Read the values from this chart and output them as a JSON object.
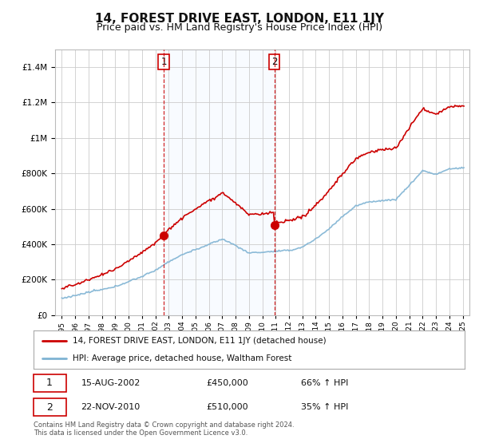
{
  "title": "14, FOREST DRIVE EAST, LONDON, E11 1JY",
  "subtitle": "Price paid vs. HM Land Registry's House Price Index (HPI)",
  "legend_line1": "14, FOREST DRIVE EAST, LONDON, E11 1JY (detached house)",
  "legend_line2": "HPI: Average price, detached house, Waltham Forest",
  "annotation1_date": "15-AUG-2002",
  "annotation1_price": "£450,000",
  "annotation1_hpi": "66% ↑ HPI",
  "annotation2_date": "22-NOV-2010",
  "annotation2_price": "£510,000",
  "annotation2_hpi": "35% ↑ HPI",
  "footer": "Contains HM Land Registry data © Crown copyright and database right 2024.\nThis data is licensed under the Open Government Licence v3.0.",
  "sale1_year": 2002.62,
  "sale1_price": 450000,
  "sale2_year": 2010.9,
  "sale2_price": 510000,
  "red_color": "#cc0000",
  "blue_color": "#7fb3d3",
  "shade_color": "#ddeeff",
  "ylim_min": 0,
  "ylim_max": 1500000,
  "xlim_min": 1994.5,
  "xlim_max": 2025.5,
  "background_color": "#ffffff",
  "grid_color": "#cccccc",
  "title_fontsize": 11,
  "subtitle_fontsize": 9
}
